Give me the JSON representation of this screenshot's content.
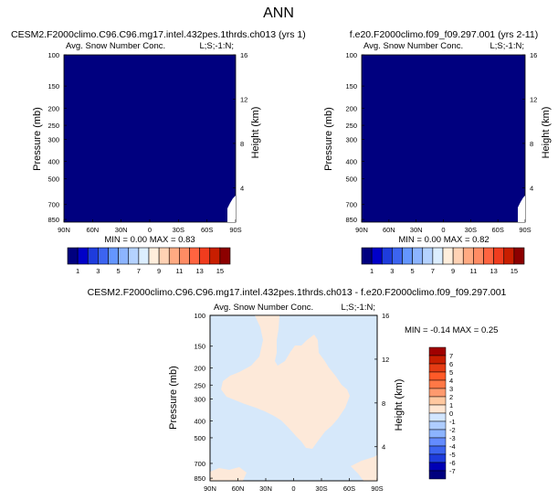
{
  "figure": {
    "title": "ANN"
  },
  "panels": [
    {
      "id": "left",
      "case_title": "CESM2.F2000climo.C96.C96.mg17.intel.432pes.1thrds.ch013 (yrs 1)",
      "variable": "Avg. Snow Number Conc.",
      "tag": "L;S;-1:N;",
      "stats": "MIN =  0.00  MAX =  0.83"
    },
    {
      "id": "right",
      "case_title": "f.e20.F2000climo.f09_f09.297.001 (yrs 2-11)",
      "variable": "Avg. Snow Number Conc.",
      "tag": "L;S;-1:N;",
      "stats": "MIN =  0.00  MAX =  0.82"
    },
    {
      "id": "diff",
      "case_title": "CESM2.F2000climo.C96.C96.mg17.intel.432pes.1thrds.ch013 - f.e20.F2000climo.f09_f09.297.001",
      "variable": "Avg. Snow Number Conc.",
      "tag": "L;S;-1:N;",
      "stats": "MIN = -0.14  MAX =  0.25"
    }
  ],
  "axes": {
    "ylabel": "Pressure (mb)",
    "ylabel_right": "Height (km)",
    "pressure_ticks": [
      "100",
      "150",
      "200",
      "250",
      "300",
      "400",
      "500",
      "700",
      "850"
    ],
    "height_ticks": [
      "16",
      "12",
      "8",
      "4"
    ],
    "lat_ticks": [
      "90N",
      "60N",
      "30N",
      "0",
      "30S",
      "60S",
      "90S"
    ]
  },
  "colorbar_abs": {
    "labels": [
      "1",
      "3",
      "5",
      "7",
      "9",
      "11",
      "13",
      "15"
    ],
    "colors": [
      "#00007f",
      "#0000c8",
      "#1e3cdc",
      "#3c64f0",
      "#6496ff",
      "#8cb4ff",
      "#b4d2ff",
      "#dceeff",
      "#ffeedc",
      "#ffd2b4",
      "#ffaa82",
      "#ff8c64",
      "#ff6440",
      "#f03c1e",
      "#c81e00",
      "#8c0000"
    ]
  },
  "colorbar_diff": {
    "labels": [
      "7",
      "6",
      "5",
      "4",
      "3",
      "2",
      "1",
      "0",
      "-1",
      "-2",
      "-3",
      "-4",
      "-5",
      "-6",
      "-7"
    ],
    "colors": [
      "#a00000",
      "#c81e00",
      "#e63c14",
      "#ff5a28",
      "#ff7846",
      "#ff9a6e",
      "#ffc8a0",
      "#ffe6d2",
      "#d2e6ff",
      "#afcdff",
      "#8cb4ff",
      "#648cff",
      "#3c64f0",
      "#1e3cdc",
      "#0000b4",
      "#00007f"
    ]
  },
  "colors": {
    "deep_blue": "#00007f",
    "diff_bg": "#d6e8fa",
    "diff_pos": "#fde9d9"
  },
  "chart_data": [
    {
      "type": "heatmap",
      "title": "CESM2.F2000climo.C96.C96.mg17.intel.432pes.1thrds.ch013 (yrs 1)",
      "variable": "Avg. Snow Number Conc.",
      "xlabel": "",
      "ylabel": "Pressure (mb)",
      "ylabel_right": "Height (km)",
      "x_ticks": [
        "90N",
        "60N",
        "30N",
        "0",
        "30S",
        "60S",
        "90S"
      ],
      "y_ticks": [
        100,
        150,
        200,
        250,
        300,
        400,
        500,
        700,
        850
      ],
      "min": 0.0,
      "max": 0.83,
      "colorbar_levels": [
        1,
        3,
        5,
        7,
        9,
        11,
        13,
        15
      ]
    },
    {
      "type": "heatmap",
      "title": "f.e20.F2000climo.f09_f09.297.001 (yrs 2-11)",
      "variable": "Avg. Snow Number Conc.",
      "xlabel": "",
      "ylabel": "Pressure (mb)",
      "ylabel_right": "Height (km)",
      "x_ticks": [
        "90N",
        "60N",
        "30N",
        "0",
        "30S",
        "60S",
        "90S"
      ],
      "y_ticks": [
        100,
        150,
        200,
        250,
        300,
        400,
        500,
        700,
        850
      ],
      "min": 0.0,
      "max": 0.82,
      "colorbar_levels": [
        1,
        3,
        5,
        7,
        9,
        11,
        13,
        15
      ]
    },
    {
      "type": "heatmap",
      "title": "CESM2.F2000climo.C96.C96.mg17.intel.432pes.1thrds.ch013 - f.e20.F2000climo.f09_f09.297.001",
      "variable": "Avg. Snow Number Conc.",
      "xlabel": "",
      "ylabel": "Pressure (mb)",
      "ylabel_right": "Height (km)",
      "x_ticks": [
        "90N",
        "60N",
        "30N",
        "0",
        "30S",
        "60S",
        "90S"
      ],
      "y_ticks": [
        100,
        150,
        200,
        250,
        300,
        400,
        500,
        700,
        850
      ],
      "min": -0.14,
      "max": 0.25,
      "colorbar_levels": [
        7,
        6,
        5,
        4,
        3,
        2,
        1,
        0,
        -1,
        -2,
        -3,
        -4,
        -5,
        -6,
        -7
      ]
    }
  ]
}
